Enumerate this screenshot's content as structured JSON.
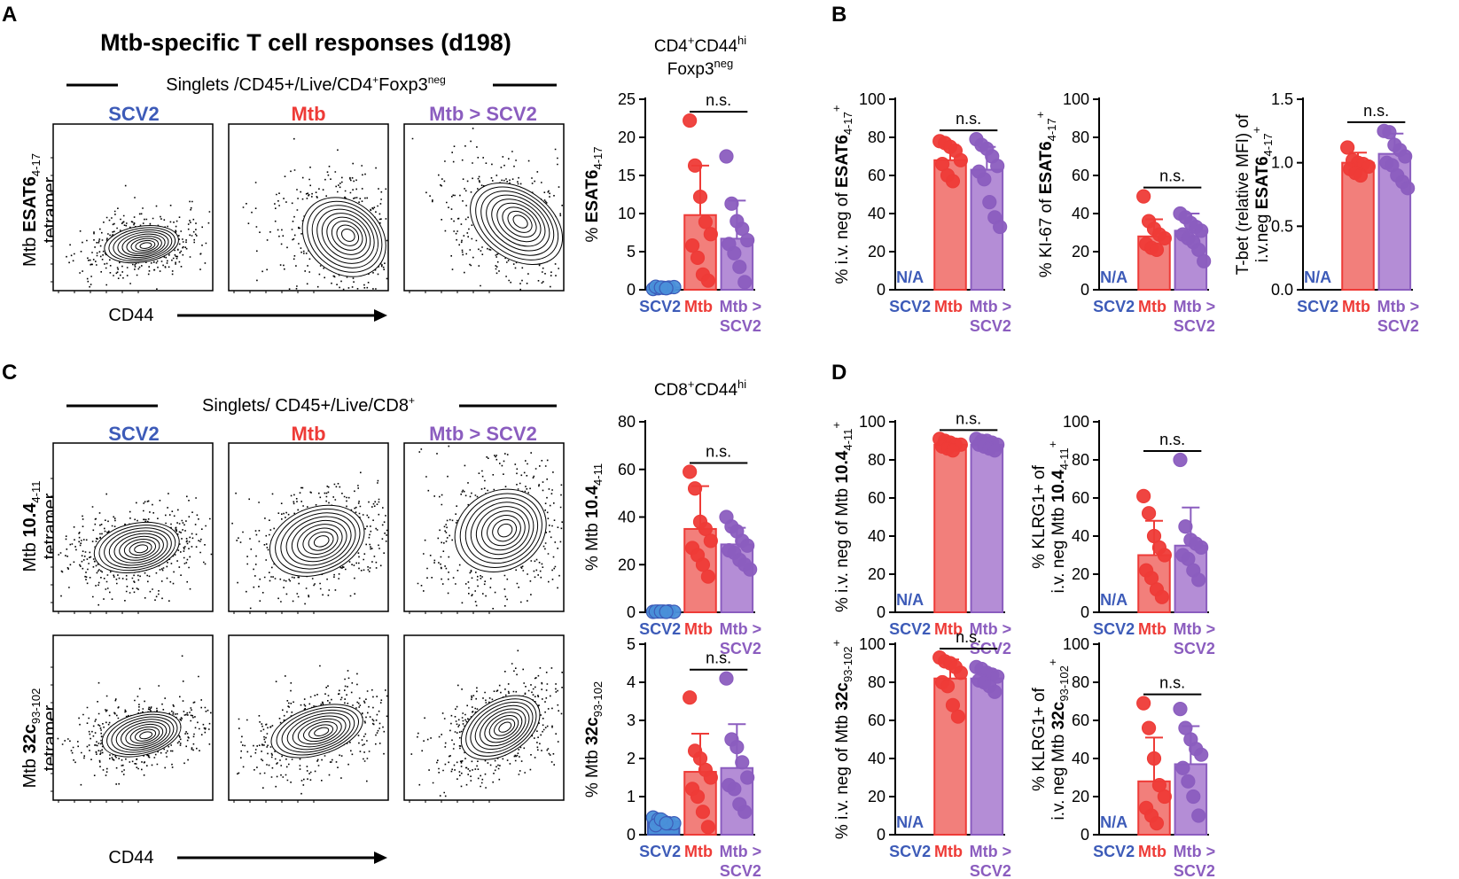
{
  "colors": {
    "scv2": "#3D5BB8",
    "mtb": "#EE3B37",
    "mtbscv2": "#8B5DBF",
    "scv2_dot": "#4A90D9",
    "mtb_bar": "#F27F7B",
    "mtbscv2_bar": "#B48DD6",
    "na": "#3D5BB8"
  },
  "panel_letters": [
    "A",
    "B",
    "C",
    "D"
  ],
  "flow": {
    "title": "Mtb-specific T cell responses (d198)",
    "gate_A": {
      "base": "Singlets /CD45+/Live/CD4",
      "sup": "+",
      "mid": "Foxp3",
      "sup2": "neg"
    },
    "gate_C": {
      "base": "Singlets/ CD45+/Live/CD8",
      "sup": "+"
    },
    "groups": [
      "SCV2",
      "Mtb",
      "Mtb > SCV2"
    ],
    "x_axis": "CD44",
    "ylabels": [
      {
        "pre": "Mtb ",
        "bold": "ESAT6",
        "sub": "4-17",
        "line2": "tetramer"
      },
      {
        "pre": "Mtb ",
        "bold": "10.4",
        "sub": "4-11",
        "line2": "tetramer"
      },
      {
        "pre": "Mtb ",
        "bold": "32c",
        "sub": "93-102",
        "line2": "tetramer"
      }
    ]
  },
  "chart_data": [
    {
      "id": "A1",
      "type": "bar",
      "title_lines": [
        {
          "parts": [
            [
              "CD4",
              ""
            ],
            [
              "+",
              "sup"
            ],
            [
              "CD44",
              ""
            ],
            [
              "hi",
              "sup"
            ]
          ]
        },
        {
          "parts": [
            [
              "Foxp3",
              ""
            ],
            [
              "neg",
              "sup"
            ]
          ]
        }
      ],
      "ylabel": [
        [
          "% ",
          ""
        ],
        [
          "ESAT6",
          "b"
        ],
        [
          "4-17",
          "sub"
        ]
      ],
      "categories": [
        "SCV2",
        "Mtb",
        "Mtb > SCV2"
      ],
      "ylim": [
        0,
        25
      ],
      "yticks": [
        0,
        5,
        10,
        15,
        20,
        25
      ],
      "series": [
        {
          "name": "SCV2",
          "mean": 0.3,
          "sd": 0.2,
          "points": [
            0.1,
            0.2,
            0.25,
            0.3,
            0.35,
            0.4,
            0.3,
            0.2
          ]
        },
        {
          "name": "Mtb",
          "mean": 9.8,
          "sd": 6.5,
          "points": [
            22.2,
            16.3,
            12.2,
            8.9,
            7.3,
            5.8,
            4.2,
            2.0,
            1.2
          ]
        },
        {
          "name": "Mtb > SCV2",
          "mean": 6.7,
          "sd": 5.0,
          "points": [
            17.5,
            11.3,
            9.0,
            8.0,
            6.5,
            6.0,
            4.8,
            3.0,
            1.0
          ]
        }
      ],
      "na": null,
      "sig": {
        "label": "n.s.",
        "from": 1,
        "to": 2
      }
    },
    {
      "id": "B1",
      "type": "bar",
      "ylabel": [
        [
          "% i.v. neg of ",
          ""
        ],
        [
          "ESAT6",
          "b"
        ],
        [
          "4-17",
          "sub"
        ],
        [
          "+",
          "sup"
        ]
      ],
      "categories": [
        "SCV2",
        "Mtb",
        "Mtb > SCV2"
      ],
      "ylim": [
        0,
        100
      ],
      "yticks": [
        0,
        20,
        40,
        60,
        80,
        100
      ],
      "series": [
        {
          "name": "SCV2",
          "mean": null,
          "sd": null,
          "points": []
        },
        {
          "name": "Mtb",
          "mean": 68,
          "sd": 8,
          "points": [
            78,
            77,
            75,
            73,
            68,
            66,
            60,
            57
          ]
        },
        {
          "name": "Mtb > SCV2",
          "mean": 63,
          "sd": 12,
          "points": [
            79,
            76,
            74,
            70,
            65,
            62,
            58,
            46,
            38,
            33
          ]
        }
      ],
      "na": "N/A",
      "sig": {
        "label": "n.s.",
        "from": 1,
        "to": 2
      }
    },
    {
      "id": "B2",
      "type": "bar",
      "ylabel": [
        [
          "% KI-67 of ",
          ""
        ],
        [
          "ESAT6",
          "b"
        ],
        [
          "4-17",
          "sub"
        ],
        [
          "+",
          "sup"
        ]
      ],
      "categories": [
        "SCV2",
        "Mtb",
        "Mtb > SCV2"
      ],
      "ylim": [
        0,
        100
      ],
      "yticks": [
        0,
        20,
        40,
        60,
        80,
        100
      ],
      "series": [
        {
          "name": "SCV2",
          "mean": null,
          "sd": null,
          "points": []
        },
        {
          "name": "Mtb",
          "mean": 28,
          "sd": 9,
          "points": [
            49,
            36,
            32,
            29,
            27,
            24,
            22,
            21
          ]
        },
        {
          "name": "Mtb > SCV2",
          "mean": 31,
          "sd": 9,
          "points": [
            40,
            38,
            35,
            33,
            31,
            29,
            27,
            25,
            21,
            15
          ]
        }
      ],
      "na": "N/A",
      "sig": {
        "label": "n.s.",
        "from": 1,
        "to": 2
      }
    },
    {
      "id": "B3",
      "type": "bar",
      "ylabel_lines": [
        [
          [
            "T-bet (relative MFI) of",
            ""
          ]
        ],
        [
          [
            "i.v.neg ",
            ""
          ],
          [
            "ESAT6",
            "b"
          ],
          [
            "4-17",
            "sub"
          ],
          [
            "+",
            "sup"
          ]
        ]
      ],
      "categories": [
        "SCV2",
        "Mtb",
        "Mtb > SCV2"
      ],
      "ylim": [
        0,
        1.5
      ],
      "yticks": [
        0.0,
        0.5,
        1.0,
        1.5
      ],
      "ytick_fmt": 1,
      "series": [
        {
          "name": "SCV2",
          "mean": null,
          "sd": null,
          "points": []
        },
        {
          "name": "Mtb",
          "mean": 1.0,
          "sd": 0.08,
          "points": [
            1.12,
            1.02,
            1.0,
            0.99,
            0.97,
            0.95,
            0.92,
            0.9
          ]
        },
        {
          "name": "Mtb > SCV2",
          "mean": 1.07,
          "sd": 0.16,
          "points": [
            1.25,
            1.24,
            1.14,
            1.1,
            1.05,
            1.0,
            0.98,
            0.9,
            0.85,
            0.8
          ]
        }
      ],
      "na": "N/A",
      "sig": {
        "label": "n.s.",
        "from": 1,
        "to": 2
      }
    },
    {
      "id": "C1",
      "type": "bar",
      "title_lines": [
        {
          "parts": [
            [
              "CD8",
              ""
            ],
            [
              "+",
              "sup"
            ],
            [
              "CD44",
              ""
            ],
            [
              "hi",
              "sup"
            ]
          ]
        }
      ],
      "ylabel": [
        [
          "% Mtb ",
          ""
        ],
        [
          "10.4",
          "b"
        ],
        [
          "4-11",
          "sub"
        ]
      ],
      "categories": [
        "SCV2",
        "Mtb",
        "Mtb > SCV2"
      ],
      "ylim": [
        0,
        80
      ],
      "yticks": [
        0,
        20,
        40,
        60,
        80
      ],
      "series": [
        {
          "name": "SCV2",
          "mean": 0.3,
          "sd": 0.2,
          "points": [
            0.2,
            0.3,
            0.3,
            0.4,
            0.2,
            0.3,
            0.3,
            0.2
          ]
        },
        {
          "name": "Mtb",
          "mean": 35,
          "sd": 18,
          "points": [
            59,
            52,
            38,
            35,
            30,
            27,
            24,
            20,
            15
          ]
        },
        {
          "name": "Mtb > SCV2",
          "mean": 28.5,
          "sd": 7,
          "points": [
            40,
            36,
            34,
            30,
            28,
            26,
            25,
            22,
            20,
            18
          ]
        }
      ],
      "na": null,
      "sig": {
        "label": "n.s.",
        "from": 1,
        "to": 2
      }
    },
    {
      "id": "C2",
      "type": "bar",
      "ylabel": [
        [
          "% Mtb ",
          ""
        ],
        [
          "32c",
          "b"
        ],
        [
          "93-102",
          "sub"
        ]
      ],
      "categories": [
        "SCV2",
        "Mtb",
        "Mtb > SCV2"
      ],
      "ylim": [
        0,
        5
      ],
      "yticks": [
        0,
        1,
        2,
        3,
        4,
        5
      ],
      "series": [
        {
          "name": "SCV2",
          "mean": 0.35,
          "sd": 0.1,
          "points": [
            0.45,
            0.4,
            0.35,
            0.3,
            0.3,
            0.25,
            0.4,
            0.3
          ]
        },
        {
          "name": "Mtb",
          "mean": 1.65,
          "sd": 1.0,
          "points": [
            3.6,
            2.2,
            2.0,
            1.7,
            1.5,
            1.2,
            1.0,
            0.6,
            0.2
          ]
        },
        {
          "name": "Mtb > SCV2",
          "mean": 1.75,
          "sd": 1.15,
          "points": [
            4.1,
            2.5,
            2.3,
            1.9,
            1.5,
            1.3,
            1.2,
            0.8,
            0.6
          ]
        }
      ],
      "na": null,
      "sig": {
        "label": "n.s.",
        "from": 1,
        "to": 2
      }
    },
    {
      "id": "D1",
      "type": "bar",
      "ylabel": [
        [
          "% i.v. neg of Mtb ",
          ""
        ],
        [
          "10.4",
          "b"
        ],
        [
          "4-11",
          "sub"
        ],
        [
          "+",
          "sup"
        ]
      ],
      "categories": [
        "SCV2",
        "Mtb",
        "Mtb > SCV2"
      ],
      "ylim": [
        0,
        100
      ],
      "yticks": [
        0,
        20,
        40,
        60,
        80,
        100
      ],
      "series": [
        {
          "name": "SCV2",
          "mean": null,
          "sd": null,
          "points": []
        },
        {
          "name": "Mtb",
          "mean": 88,
          "sd": 3,
          "points": [
            91,
            90,
            89,
            88,
            88,
            87,
            86,
            85
          ]
        },
        {
          "name": "Mtb > SCV2",
          "mean": 88,
          "sd": 3,
          "points": [
            91,
            90,
            90,
            89,
            88,
            88,
            87,
            86,
            85
          ]
        }
      ],
      "na": "N/A",
      "sig": {
        "label": "n.s.",
        "from": 1,
        "to": 2
      }
    },
    {
      "id": "D2",
      "type": "bar",
      "ylabel_lines": [
        [
          [
            "% KLRG1+ of",
            ""
          ]
        ],
        [
          [
            "i.v. neg  Mtb ",
            ""
          ],
          [
            "10.4",
            "b"
          ],
          [
            "4-11",
            "sub"
          ],
          [
            "+",
            "sup"
          ]
        ]
      ],
      "categories": [
        "SCV2",
        "Mtb",
        "Mtb > SCV2"
      ],
      "ylim": [
        0,
        100
      ],
      "yticks": [
        0,
        20,
        40,
        60,
        80,
        100
      ],
      "series": [
        {
          "name": "SCV2",
          "mean": null,
          "sd": null,
          "points": []
        },
        {
          "name": "Mtb",
          "mean": 30,
          "sd": 18,
          "points": [
            61,
            52,
            40,
            34,
            30,
            22,
            18,
            12,
            8
          ]
        },
        {
          "name": "Mtb > SCV2",
          "mean": 35,
          "sd": 20,
          "points": [
            80,
            45,
            38,
            36,
            34,
            30,
            28,
            22,
            17
          ]
        }
      ],
      "na": "N/A",
      "sig": {
        "label": "n.s.",
        "from": 1,
        "to": 2
      }
    },
    {
      "id": "D3",
      "type": "bar",
      "ylabel": [
        [
          "% i.v. neg of Mtb ",
          ""
        ],
        [
          "32c",
          "b"
        ],
        [
          "93-102",
          "sub"
        ],
        [
          "+",
          "sup"
        ]
      ],
      "categories": [
        "SCV2",
        "Mtb",
        "Mtb > SCV2"
      ],
      "ylim": [
        0,
        100
      ],
      "yticks": [
        0,
        20,
        40,
        60,
        80,
        100
      ],
      "series": [
        {
          "name": "SCV2",
          "mean": null,
          "sd": null,
          "points": []
        },
        {
          "name": "Mtb",
          "mean": 82,
          "sd": 10,
          "points": [
            93,
            91,
            90,
            88,
            85,
            80,
            78,
            68,
            62
          ]
        },
        {
          "name": "Mtb > SCV2",
          "mean": 82,
          "sd": 5,
          "points": [
            88,
            87,
            85,
            84,
            83,
            81,
            80,
            78,
            75
          ]
        }
      ],
      "na": "N/A",
      "sig": {
        "label": "n.s.",
        "from": 1,
        "to": 2
      }
    },
    {
      "id": "D4",
      "type": "bar",
      "ylabel_lines": [
        [
          [
            "% KLRG1+ of",
            ""
          ]
        ],
        [
          [
            "i.v. neg  Mtb ",
            ""
          ],
          [
            "32c",
            "b"
          ],
          [
            "93-102",
            "sub"
          ],
          [
            "+",
            "sup"
          ]
        ]
      ],
      "categories": [
        "SCV2",
        "Mtb",
        "Mtb > SCV2"
      ],
      "ylim": [
        0,
        100
      ],
      "yticks": [
        0,
        20,
        40,
        60,
        80,
        100
      ],
      "series": [
        {
          "name": "SCV2",
          "mean": null,
          "sd": null,
          "points": []
        },
        {
          "name": "Mtb",
          "mean": 28,
          "sd": 23,
          "points": [
            69,
            56,
            40,
            26,
            20,
            14,
            10,
            6
          ]
        },
        {
          "name": "Mtb > SCV2",
          "mean": 37,
          "sd": 20,
          "points": [
            66,
            56,
            50,
            45,
            42,
            35,
            28,
            20,
            10
          ]
        }
      ],
      "na": "N/A",
      "sig": {
        "label": "n.s.",
        "from": 1,
        "to": 2
      }
    }
  ]
}
